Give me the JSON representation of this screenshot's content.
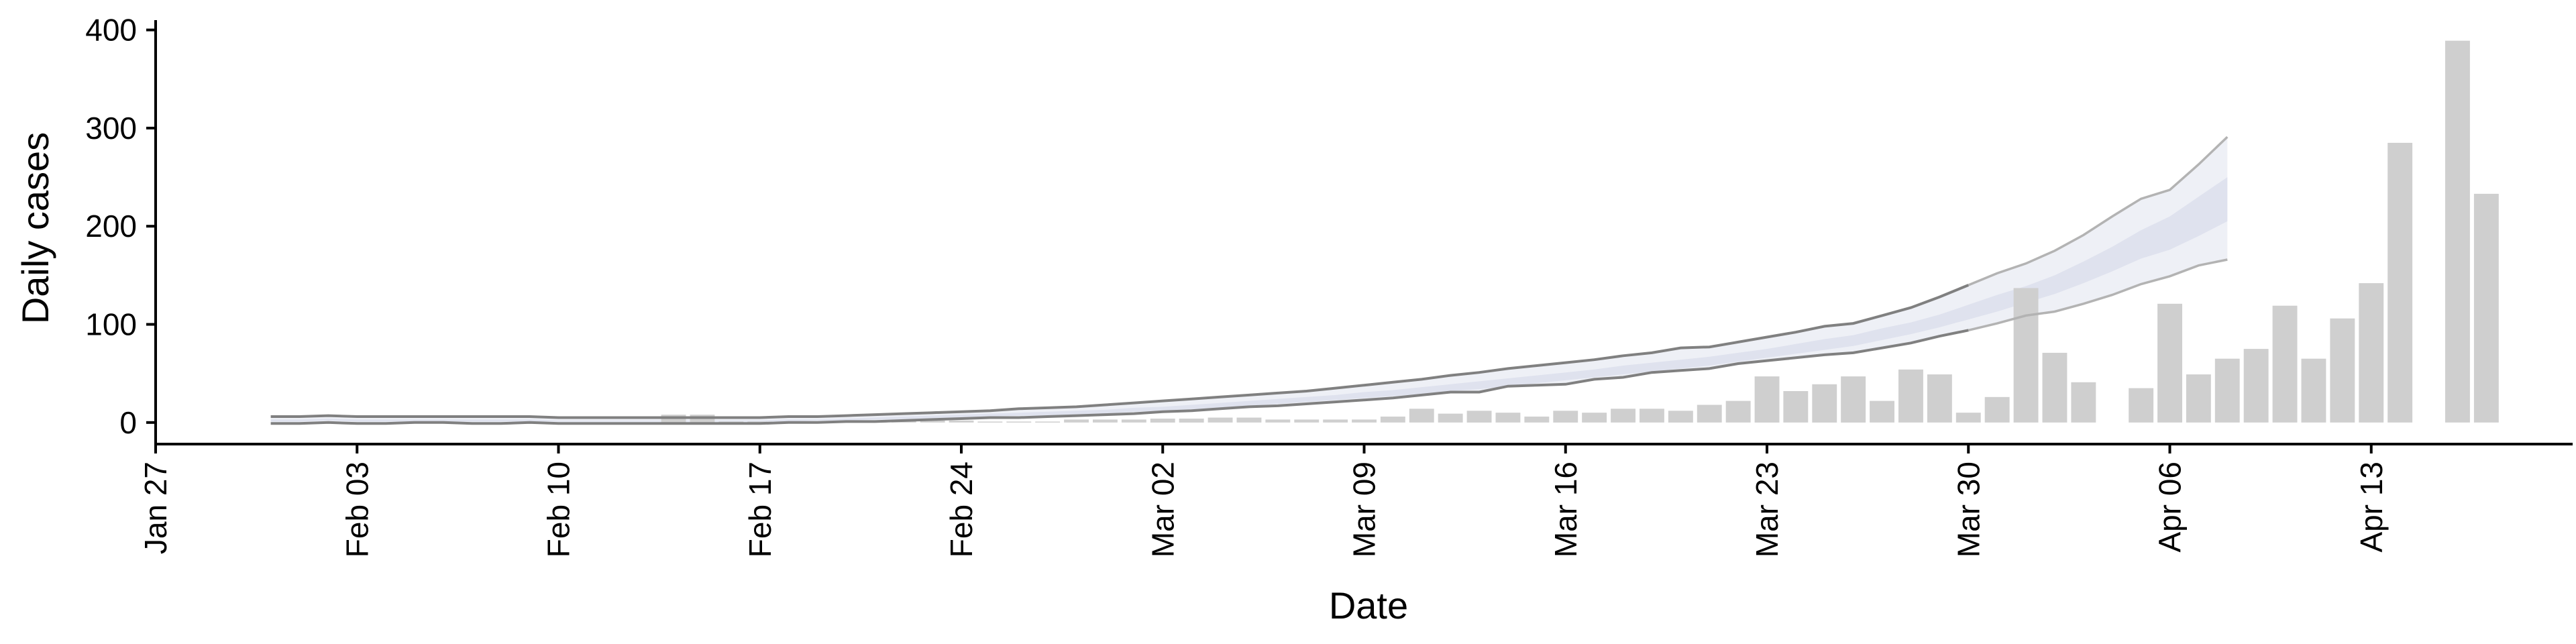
{
  "chart_data": {
    "type": "bar",
    "xlabel": "Date",
    "ylabel": "Daily cases",
    "ylim": [
      -22,
      410
    ],
    "xlim": [
      "2020-01-27",
      "2020-04-20"
    ],
    "yticks": [
      0,
      100,
      200,
      300,
      400
    ],
    "xticks": [
      {
        "date": "2020-01-27",
        "label": "Jan 27"
      },
      {
        "date": "2020-02-03",
        "label": "Feb 03"
      },
      {
        "date": "2020-02-10",
        "label": "Feb 10"
      },
      {
        "date": "2020-02-17",
        "label": "Feb 17"
      },
      {
        "date": "2020-02-24",
        "label": "Feb 24"
      },
      {
        "date": "2020-03-02",
        "label": "Mar 02"
      },
      {
        "date": "2020-03-09",
        "label": "Mar 09"
      },
      {
        "date": "2020-03-16",
        "label": "Mar 16"
      },
      {
        "date": "2020-03-23",
        "label": "Mar 23"
      },
      {
        "date": "2020-03-30",
        "label": "Mar 30"
      },
      {
        "date": "2020-04-06",
        "label": "Apr 06"
      },
      {
        "date": "2020-04-13",
        "label": "Apr 13"
      }
    ],
    "grid": false,
    "colors": {
      "bar": "#cfcfcf",
      "band_outer": "#eef0f6",
      "band_inner": "#dfe2ee",
      "line_dark": "#808080",
      "line_light": "#b3b3b3"
    },
    "bars": {
      "start_date": "2020-02-14",
      "values": [
        8,
        8,
        1,
        1,
        1,
        1,
        1,
        2,
        2,
        2,
        2,
        1,
        1,
        1,
        3,
        3,
        3,
        4,
        4,
        5,
        5,
        3,
        3,
        3,
        3,
        6,
        14,
        9,
        12,
        10,
        6,
        12,
        10,
        14,
        14,
        12,
        18,
        22,
        47,
        32,
        39,
        47,
        22,
        54,
        49,
        10,
        26,
        137,
        71,
        41,
        0,
        35,
        121,
        49,
        65,
        75,
        119,
        65,
        106,
        142,
        285,
        0,
        389,
        233
      ]
    },
    "projection": {
      "start_date": "2020-01-31",
      "upper": [
        6,
        6,
        7,
        6,
        6,
        6,
        6,
        6,
        6,
        6,
        5,
        5,
        5,
        5,
        5,
        5,
        5,
        5,
        6,
        6,
        7,
        8,
        9,
        10,
        11,
        12,
        14,
        15,
        16,
        18,
        20,
        22,
        24,
        26,
        28,
        30,
        32,
        35,
        38,
        41,
        44,
        48,
        51,
        55,
        58,
        61,
        64,
        68,
        71,
        76,
        77,
        82,
        87,
        92,
        98,
        101,
        109,
        117,
        128,
        140,
        152,
        162,
        175,
        191,
        210,
        228,
        237,
        263,
        291
      ],
      "lower": [
        -1,
        -1,
        0,
        -1,
        -1,
        0,
        0,
        -1,
        -1,
        0,
        -1,
        -1,
        -1,
        -1,
        -1,
        -1,
        -1,
        -1,
        0,
        0,
        1,
        1,
        2,
        3,
        4,
        5,
        5,
        6,
        7,
        8,
        9,
        11,
        12,
        14,
        16,
        17,
        19,
        21,
        23,
        25,
        28,
        31,
        31,
        37,
        38,
        39,
        44,
        46,
        51,
        53,
        55,
        60,
        63,
        66,
        69,
        71,
        76,
        81,
        88,
        94,
        101,
        109,
        113,
        121,
        130,
        141,
        149,
        160,
        166
      ],
      "inner_upper": [
        3,
        3,
        4,
        3,
        3,
        3,
        3,
        3,
        3,
        3,
        2,
        2,
        2,
        2,
        2,
        2,
        2,
        2,
        3,
        3,
        4,
        5,
        6,
        7,
        8,
        9,
        10,
        11,
        12,
        13,
        15,
        16,
        18,
        20,
        22,
        24,
        26,
        28,
        31,
        33,
        36,
        39,
        42,
        45,
        48,
        51,
        54,
        58,
        61,
        64,
        67,
        71,
        75,
        80,
        85,
        89,
        96,
        102,
        110,
        120,
        130,
        139,
        150,
        164,
        179,
        196,
        210,
        230,
        250
      ],
      "inner_lower": [
        1,
        1,
        2,
        1,
        1,
        1,
        1,
        1,
        1,
        1,
        1,
        1,
        1,
        1,
        1,
        1,
        1,
        1,
        1,
        2,
        2,
        3,
        3,
        4,
        5,
        6,
        7,
        7,
        8,
        9,
        11,
        12,
        13,
        15,
        17,
        19,
        21,
        23,
        25,
        27,
        29,
        32,
        34,
        37,
        40,
        43,
        46,
        49,
        52,
        55,
        58,
        62,
        66,
        70,
        74,
        78,
        84,
        90,
        97,
        105,
        113,
        122,
        131,
        142,
        154,
        167,
        176,
        190,
        205
      ]
    }
  }
}
